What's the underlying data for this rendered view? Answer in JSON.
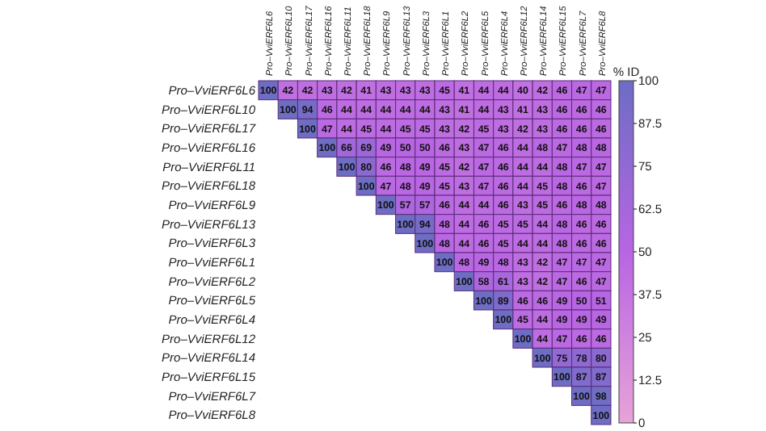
{
  "chart_data": {
    "type": "heatmap",
    "clabel": "% ID",
    "categories": [
      "Pro–VviERF6L6",
      "Pro–VviERF6L10",
      "Pro–VviERF6L17",
      "Pro–VviERF6L16",
      "Pro–VviERF6L11",
      "Pro–VviERF6L18",
      "Pro–VviERF6L9",
      "Pro–VviERF6L13",
      "Pro–VviERF6L3",
      "Pro–VviERF6L1",
      "Pro–VviERF6L2",
      "Pro–VviERF6L5",
      "Pro–VviERF6L4",
      "Pro–VviERF6L12",
      "Pro–VviERF6L14",
      "Pro–VviERF6L15",
      "Pro–VviERF6L7",
      "Pro–VviERF6L8"
    ],
    "y_categories": [
      "Pro–VviERF6L6",
      "Pro–VviERF6L10",
      "Pro–VviERF6L17",
      "Pro–VviERF6L16",
      "Pro–VviERF6L11",
      "Pro–VviERF6L18",
      "Pro–VviERF6L9",
      "Pro–VviERF6L13",
      "Pro–VviERF6L3",
      "Pro–VviERF6L1",
      "Pro–VviERF6L2",
      "Pro–VviERF6L5",
      "Pro–VviERF6L4",
      "Pro–VviERF6L12",
      "Pro–VviERF6L14",
      "Pro–VviERF6L15",
      "Pro–VviERF6L7",
      "Pro–VviERF6L8"
    ],
    "cells": [
      [
        100,
        42,
        42,
        43,
        42,
        41,
        43,
        43,
        43,
        45,
        41,
        44,
        44,
        40,
        42,
        46,
        47,
        47
      ],
      [
        null,
        100,
        94,
        46,
        44,
        44,
        44,
        44,
        44,
        43,
        41,
        44,
        43,
        41,
        43,
        46,
        46,
        46
      ],
      [
        null,
        null,
        100,
        47,
        44,
        45,
        44,
        45,
        45,
        43,
        42,
        45,
        43,
        42,
        43,
        46,
        46,
        46
      ],
      [
        null,
        null,
        null,
        100,
        66,
        69,
        49,
        50,
        50,
        46,
        43,
        47,
        46,
        44,
        48,
        47,
        48,
        48
      ],
      [
        null,
        null,
        null,
        null,
        100,
        80,
        46,
        48,
        49,
        45,
        42,
        47,
        46,
        44,
        44,
        48,
        47,
        47
      ],
      [
        null,
        null,
        null,
        null,
        null,
        100,
        47,
        48,
        49,
        45,
        43,
        47,
        46,
        44,
        45,
        48,
        46,
        47
      ],
      [
        null,
        null,
        null,
        null,
        null,
        null,
        100,
        57,
        57,
        46,
        44,
        44,
        46,
        43,
        45,
        46,
        48,
        48
      ],
      [
        null,
        null,
        null,
        null,
        null,
        null,
        null,
        100,
        94,
        48,
        44,
        46,
        45,
        45,
        44,
        48,
        46,
        46
      ],
      [
        null,
        null,
        null,
        null,
        null,
        null,
        null,
        null,
        100,
        48,
        44,
        46,
        45,
        44,
        44,
        48,
        46,
        46
      ],
      [
        null,
        null,
        null,
        null,
        null,
        null,
        null,
        null,
        null,
        100,
        48,
        49,
        48,
        43,
        42,
        47,
        47,
        47
      ],
      [
        null,
        null,
        null,
        null,
        null,
        null,
        null,
        null,
        null,
        null,
        100,
        58,
        61,
        43,
        42,
        47,
        46,
        47
      ],
      [
        null,
        null,
        null,
        null,
        null,
        null,
        null,
        null,
        null,
        null,
        null,
        100,
        89,
        46,
        46,
        49,
        50,
        51
      ],
      [
        null,
        null,
        null,
        null,
        null,
        null,
        null,
        null,
        null,
        null,
        null,
        null,
        100,
        45,
        44,
        49,
        49,
        49
      ],
      [
        null,
        null,
        null,
        null,
        null,
        null,
        null,
        null,
        null,
        null,
        null,
        null,
        null,
        100,
        44,
        47,
        46,
        46
      ],
      [
        null,
        null,
        null,
        null,
        null,
        null,
        null,
        null,
        null,
        null,
        null,
        null,
        null,
        null,
        100,
        75,
        78,
        80
      ],
      [
        null,
        null,
        null,
        null,
        null,
        null,
        null,
        null,
        null,
        null,
        null,
        null,
        null,
        null,
        null,
        100,
        87,
        87
      ],
      [
        null,
        null,
        null,
        null,
        null,
        null,
        null,
        null,
        null,
        null,
        null,
        null,
        null,
        null,
        null,
        null,
        100,
        98
      ],
      [
        null,
        null,
        null,
        null,
        null,
        null,
        null,
        null,
        null,
        null,
        null,
        null,
        null,
        null,
        null,
        null,
        null,
        100
      ]
    ],
    "data_labels": true,
    "clim": [
      0,
      100
    ],
    "cticks": [
      0,
      12.5,
      25,
      37.5,
      50,
      62.5,
      75,
      87.5,
      100
    ]
  }
}
